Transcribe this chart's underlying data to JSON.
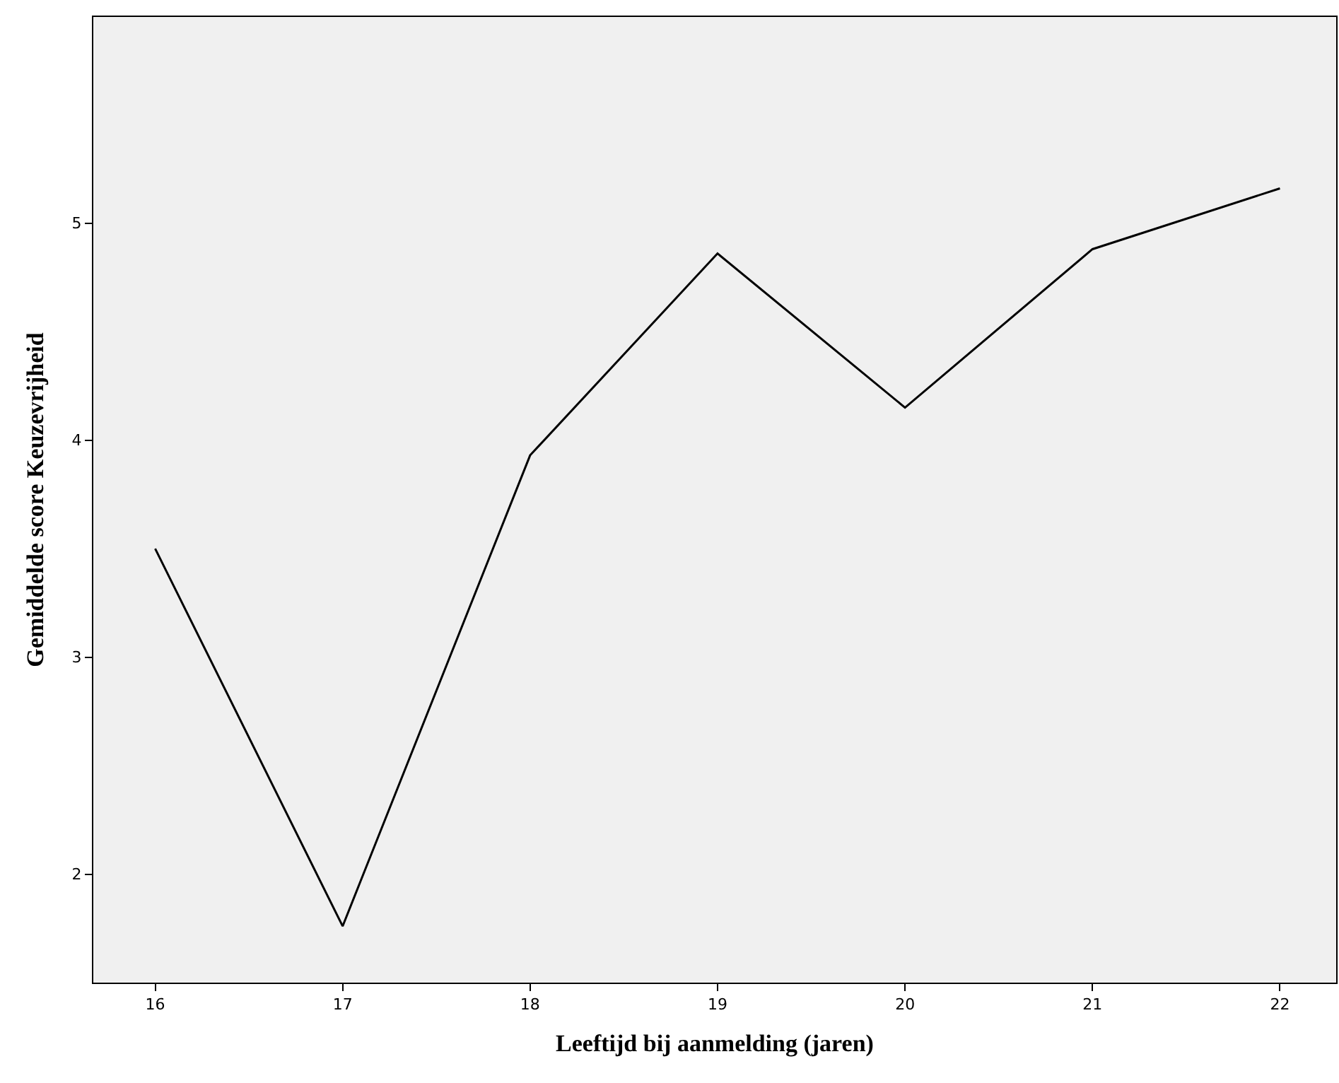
{
  "chart_data": {
    "type": "line",
    "xlabel": "Leeftijd bij aanmelding (jaren)",
    "ylabel": "Gemiddelde score Keuzevrijheid",
    "x": [
      16,
      17,
      18,
      19,
      20,
      21,
      22
    ],
    "series": [
      {
        "color": "#000000",
        "values": [
          3.5,
          1.76,
          3.93,
          4.86,
          4.15,
          4.88,
          5.16
        ]
      }
    ],
    "xlim": [
      15.67,
      22.3
    ],
    "xticks": [
      16,
      17,
      18,
      19,
      20,
      21,
      22
    ],
    "ylim": [
      1.5,
      5.95
    ],
    "yticks": [
      2,
      3,
      4,
      5
    ],
    "line_style": "solid"
  }
}
